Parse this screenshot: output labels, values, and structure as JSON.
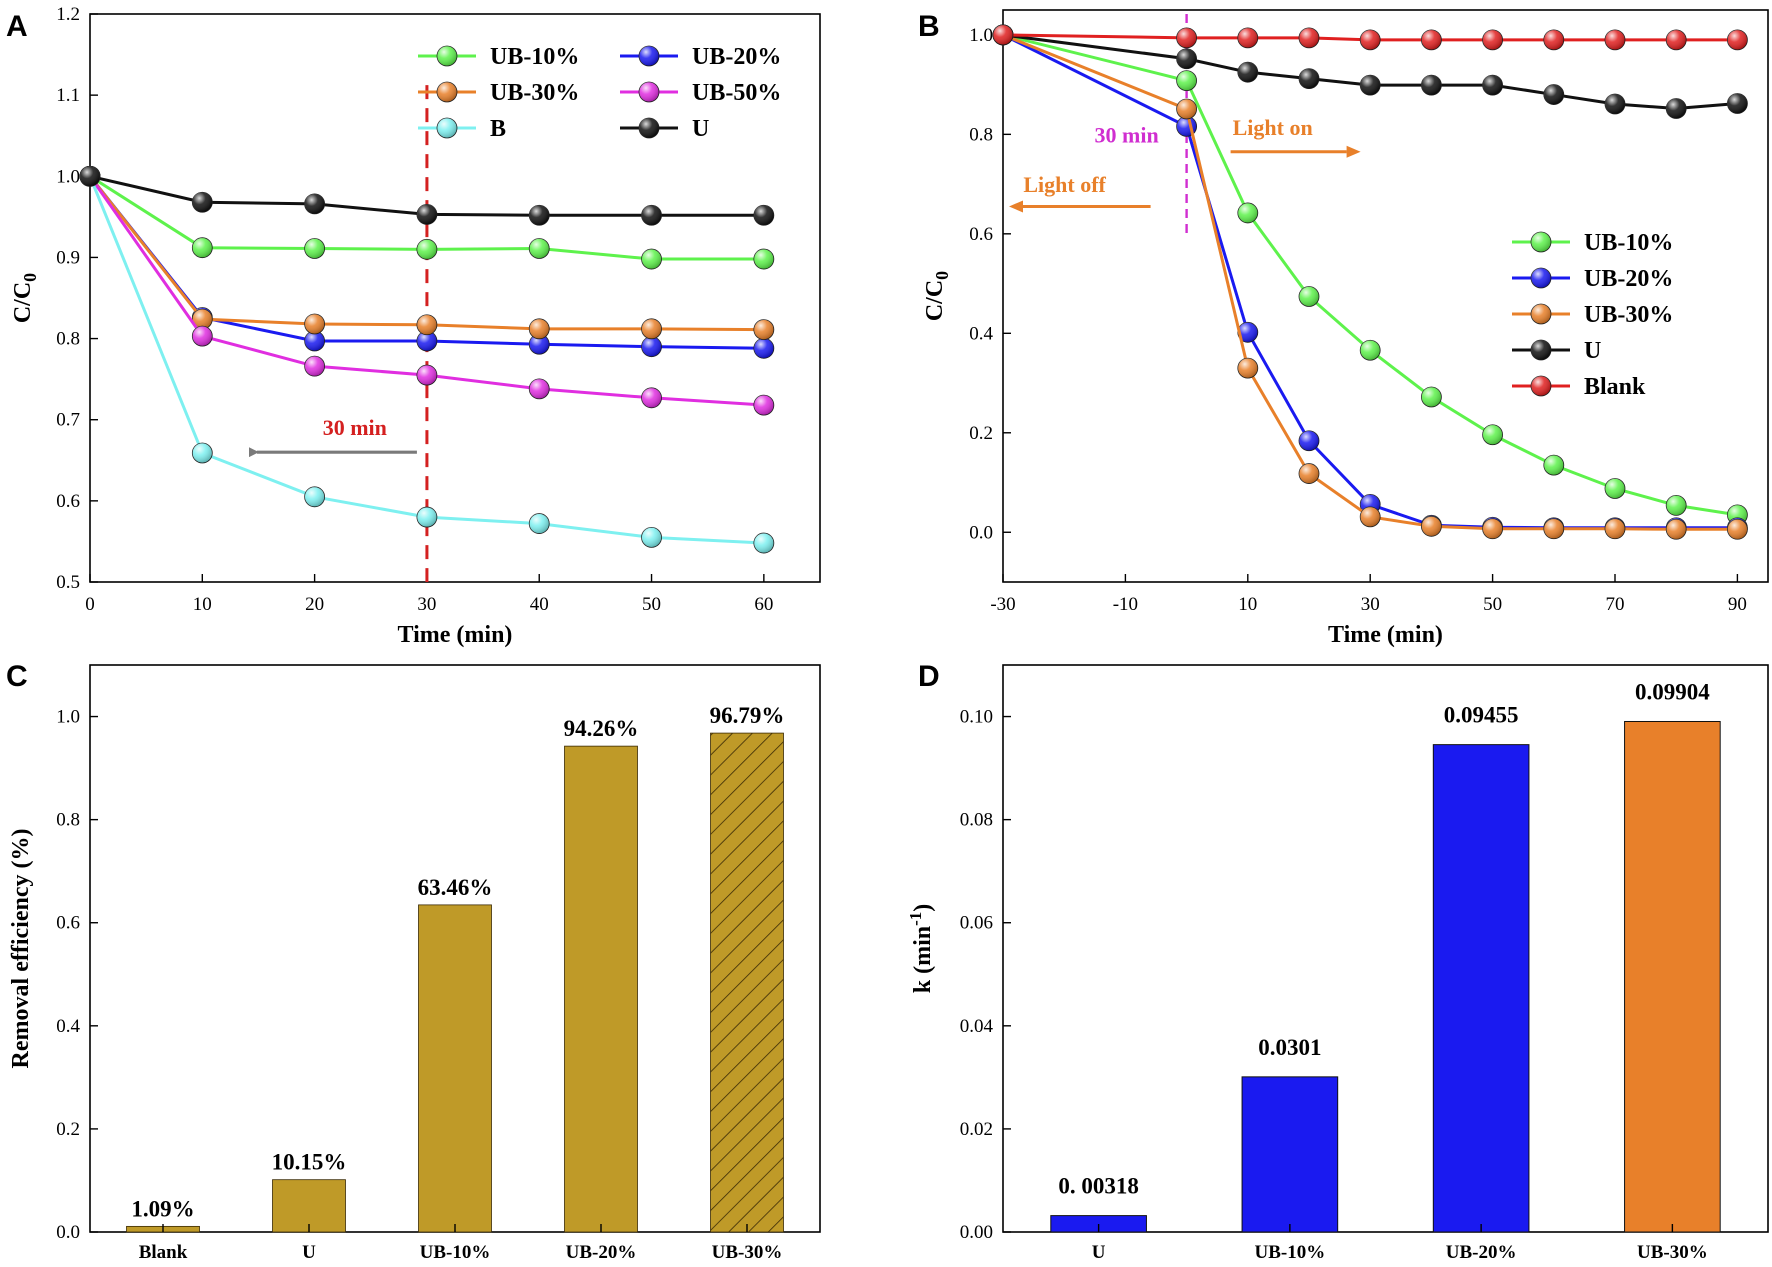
{
  "chart_data": [
    {
      "panel": "A",
      "type": "line",
      "xlabel": "Time (min)",
      "ylabel": "C/C",
      "ylabel_subscript": "0",
      "xlim": [
        0,
        65
      ],
      "ylim": [
        0.5,
        1.2
      ],
      "xticks": [
        0,
        10,
        20,
        30,
        40,
        50,
        60
      ],
      "yticks": [
        0.5,
        0.6,
        0.7,
        0.8,
        0.9,
        1.0,
        1.1,
        1.2
      ],
      "x": [
        0,
        10,
        20,
        30,
        40,
        50,
        60
      ],
      "series": [
        {
          "name": "UB-10%",
          "color": "#5ef24c",
          "values": [
            1.0,
            0.912,
            0.911,
            0.91,
            0.911,
            0.898,
            0.898
          ]
        },
        {
          "name": "UB-20%",
          "color": "#1a1af0",
          "values": [
            1.0,
            0.826,
            0.797,
            0.797,
            0.793,
            0.79,
            0.788
          ]
        },
        {
          "name": "UB-30%",
          "color": "#e8802a",
          "values": [
            1.0,
            0.824,
            0.818,
            0.817,
            0.812,
            0.812,
            0.811
          ]
        },
        {
          "name": "UB-50%",
          "color": "#e02ee0",
          "values": [
            1.0,
            0.803,
            0.766,
            0.755,
            0.738,
            0.727,
            0.718
          ]
        },
        {
          "name": "B",
          "color": "#7ef0f0",
          "values": [
            1.0,
            0.659,
            0.605,
            0.58,
            0.572,
            0.555,
            0.548
          ]
        },
        {
          "name": "U",
          "color": "#111111",
          "values": [
            1.0,
            0.968,
            0.966,
            0.953,
            0.952,
            0.952,
            0.952
          ]
        }
      ],
      "annotations": {
        "time_marker": 30,
        "label": "30 min",
        "label_color": "#d42020",
        "arrow_color": "#7a7a7a"
      }
    },
    {
      "panel": "B",
      "type": "line",
      "xlabel": "Time (min)",
      "ylabel": "C/C",
      "ylabel_subscript": "0",
      "xlim": [
        -30,
        95
      ],
      "ylim": [
        -0.1,
        1.05
      ],
      "xticks": [
        -30,
        -10,
        10,
        30,
        50,
        70,
        90
      ],
      "yticks": [
        0.0,
        0.2,
        0.4,
        0.6,
        0.8,
        1.0
      ],
      "x": [
        -30,
        0,
        10,
        20,
        30,
        40,
        50,
        60,
        70,
        80,
        90
      ],
      "series": [
        {
          "name": "UB-10%",
          "color": "#5ef24c",
          "values": [
            1.0,
            0.908,
            0.642,
            0.474,
            0.366,
            0.272,
            0.196,
            0.135,
            0.088,
            0.054,
            0.035
          ]
        },
        {
          "name": "UB-20%",
          "color": "#1a1af0",
          "values": [
            1.0,
            0.816,
            0.402,
            0.184,
            0.056,
            0.014,
            0.01,
            0.009,
            0.009,
            0.009,
            0.009
          ]
        },
        {
          "name": "UB-30%",
          "color": "#e8802a",
          "values": [
            1.0,
            0.851,
            0.33,
            0.118,
            0.031,
            0.012,
            0.007,
            0.007,
            0.007,
            0.006,
            0.006
          ]
        },
        {
          "name": "U",
          "color": "#111111",
          "values": [
            1.0,
            0.952,
            0.925,
            0.912,
            0.899,
            0.899,
            0.899,
            0.88,
            0.861,
            0.852,
            0.862
          ]
        },
        {
          "name": "Blank",
          "color": "#e02020",
          "values": [
            1.0,
            0.994,
            0.994,
            0.994,
            0.99,
            0.99,
            0.99,
            0.99,
            0.99,
            0.99,
            0.99
          ]
        }
      ],
      "annotations": {
        "label_30": "30 min",
        "label_30_color": "#d02ed0",
        "light_on": "Light on",
        "light_off": "Light off",
        "light_color": "#e8802a"
      }
    },
    {
      "panel": "C",
      "type": "bar",
      "xlabel": "",
      "ylabel": "Removal efficiency (%)",
      "ylim": [
        0,
        1.1
      ],
      "yticks": [
        0.0,
        0.2,
        0.4,
        0.6,
        0.8,
        1.0
      ],
      "categories": [
        "Blank",
        "U",
        "UB-10%",
        "UB-20%",
        "UB-30%"
      ],
      "values": [
        0.0109,
        0.1015,
        0.6346,
        0.9426,
        0.9679
      ],
      "value_labels": [
        "1.09%",
        "10.15%",
        "63.46%",
        "94.26%",
        "96.79%"
      ],
      "bar_color": "#bf9a28",
      "hatched": [
        false,
        false,
        false,
        false,
        true
      ]
    },
    {
      "panel": "D",
      "type": "bar",
      "xlabel": "",
      "ylabel": "k (min",
      "ylabel_superscript": "-1",
      "ylabel_close": ")",
      "ylim": [
        0,
        0.11
      ],
      "yticks": [
        0.0,
        0.02,
        0.04,
        0.06,
        0.08,
        0.1
      ],
      "categories": [
        "U",
        "UB-10%",
        "UB-20%",
        "UB-30%"
      ],
      "values": [
        0.00318,
        0.0301,
        0.09455,
        0.09904
      ],
      "value_labels": [
        "0. 00318",
        "0.0301",
        "0.09455",
        "0.09904"
      ],
      "colors": [
        "#1a1af0",
        "#1a1af0",
        "#1a1af0",
        "#e8802a"
      ]
    }
  ]
}
